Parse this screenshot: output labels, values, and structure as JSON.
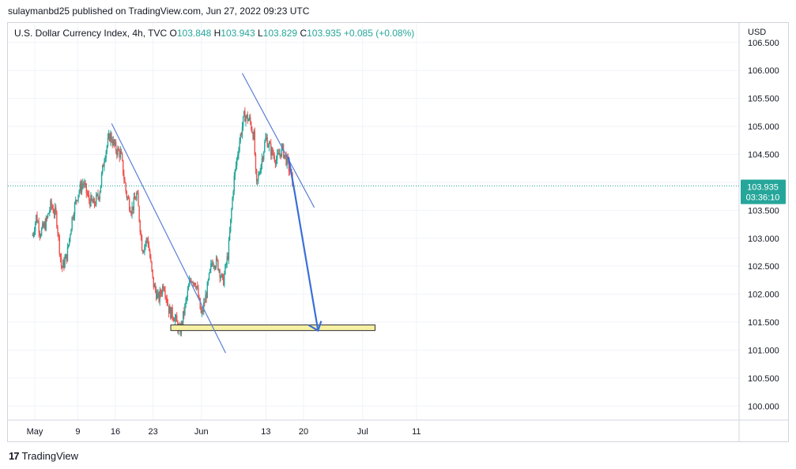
{
  "header": {
    "published": "sulaymanbd25 published on TradingView.com, Jun 27, 2022 09:23 UTC"
  },
  "legend": {
    "symbol": "U.S. Dollar Currency Index, 4h, TVC",
    "o_label": "O",
    "o": "103.848",
    "h_label": "H",
    "h": "103.943",
    "l_label": "L",
    "l": "103.829",
    "c_label": "C",
    "c": "103.935",
    "change": "+0.085 (+0.08%)"
  },
  "footer": {
    "brand": "TradingView",
    "logo": "17"
  },
  "colors": {
    "up": "#26a69a",
    "down": "#ef5350",
    "trendline": "#5b7fd4",
    "arrow": "#3a6fd8",
    "zone_fill": "#f7f1a3",
    "zone_stroke": "#2f2f2f",
    "price_tag": "#26a69a",
    "grid": "#f0f3fa",
    "axis_text": "#131722"
  },
  "chart_data": {
    "type": "candlestick",
    "symbol": "U.S. Dollar Currency Index",
    "interval": "4h",
    "currency": "USD",
    "last_price": "103.935",
    "countdown": "03:36:10",
    "y_ticks": [
      "106.500",
      "106.000",
      "105.500",
      "105.000",
      "104.500",
      "104.000",
      "103.500",
      "103.000",
      "102.500",
      "102.000",
      "101.500",
      "101.000",
      "100.500",
      "100.000"
    ],
    "ylim": [
      99.75,
      106.85
    ],
    "x_ticks": [
      {
        "label": "May",
        "t": 0
      },
      {
        "label": "9",
        "t": 8
      },
      {
        "label": "16",
        "t": 15
      },
      {
        "label": "23",
        "t": 22
      },
      {
        "label": "Jun",
        "t": 31
      },
      {
        "label": "13",
        "t": 43
      },
      {
        "label": "20",
        "t": 50
      },
      {
        "label": "Jul",
        "t": 61
      },
      {
        "label": "11",
        "t": 71
      }
    ],
    "anchors": [
      [
        -0.4,
        103.05
      ],
      [
        0.3,
        103.4
      ],
      [
        1,
        103.1
      ],
      [
        2,
        103.25
      ],
      [
        3,
        103.6
      ],
      [
        4,
        103.4
      ],
      [
        5,
        102.45
      ],
      [
        6,
        102.7
      ],
      [
        7,
        103.4
      ],
      [
        8,
        103.8
      ],
      [
        9,
        104.0
      ],
      [
        10,
        103.7
      ],
      [
        11,
        103.6
      ],
      [
        12,
        103.8
      ],
      [
        13,
        104.5
      ],
      [
        14,
        104.85
      ],
      [
        15,
        104.6
      ],
      [
        16,
        104.5
      ],
      [
        17,
        103.8
      ],
      [
        18,
        103.5
      ],
      [
        19,
        103.8
      ],
      [
        20,
        102.8
      ],
      [
        21,
        103.0
      ],
      [
        22,
        102.2
      ],
      [
        23,
        101.9
      ],
      [
        24,
        102.2
      ],
      [
        25,
        101.7
      ],
      [
        26,
        101.6
      ],
      [
        27,
        101.3
      ],
      [
        28,
        101.8
      ],
      [
        29,
        102.3
      ],
      [
        30,
        102.2
      ],
      [
        31,
        101.6
      ],
      [
        32,
        102.05
      ],
      [
        33,
        102.6
      ],
      [
        34,
        102.55
      ],
      [
        35,
        102.2
      ],
      [
        36,
        102.75
      ],
      [
        37,
        104.0
      ],
      [
        38,
        104.7
      ],
      [
        39,
        105.2
      ],
      [
        40,
        105.1
      ],
      [
        40.8,
        104.8
      ],
      [
        41.2,
        103.9
      ],
      [
        42,
        104.3
      ],
      [
        43,
        104.8
      ],
      [
        44,
        104.55
      ],
      [
        45,
        104.4
      ],
      [
        46,
        104.6
      ],
      [
        47,
        104.35
      ],
      [
        48,
        104.0
      ]
    ],
    "trendlines": [
      {
        "from": [
          14.3,
          105.05
        ],
        "to": [
          35.5,
          100.95
        ]
      },
      {
        "from": [
          38.6,
          105.95
        ],
        "to": [
          52,
          103.55
        ]
      }
    ],
    "projection_arrow": [
      [
        47.2,
        104.45
      ],
      [
        48.3,
        103.85
      ],
      [
        52.7,
        101.35
      ]
    ],
    "support_zone": {
      "from_t": 25.3,
      "to_t": 63.3,
      "low": 101.35,
      "high": 101.45
    }
  }
}
